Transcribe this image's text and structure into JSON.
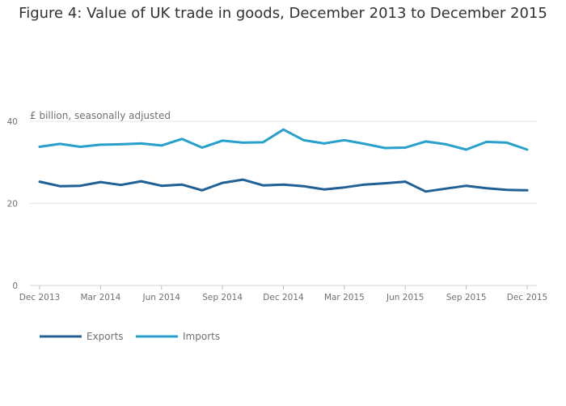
{
  "chart_data": {
    "type": "line",
    "title": "Figure 4: Value of UK trade in goods, December 2013 to December 2015",
    "ylabel": "£ billion, seasonally adjusted",
    "xlabel": "",
    "ylim": [
      0,
      40
    ],
    "y_ticks": [
      0,
      20,
      40
    ],
    "x_tick_labels": [
      "Dec 2013",
      "Mar 2014",
      "Jun 2014",
      "Sep 2014",
      "Dec 2014",
      "Mar 2015",
      "Jun 2015",
      "Sep 2015",
      "Dec 2015"
    ],
    "x_tick_every": 3,
    "grid": true,
    "legend_position": "bottom-left",
    "months": [
      "Dec 2013",
      "Jan 2014",
      "Feb 2014",
      "Mar 2014",
      "Apr 2014",
      "May 2014",
      "Jun 2014",
      "Jul 2014",
      "Aug 2014",
      "Sep 2014",
      "Oct 2014",
      "Nov 2014",
      "Dec 2014",
      "Jan 2015",
      "Feb 2015",
      "Mar 2015",
      "Apr 2015",
      "May 2015",
      "Jun 2015",
      "Jul 2015",
      "Aug 2015",
      "Sep 2015",
      "Oct 2015",
      "Nov 2015",
      "Dec 2015"
    ],
    "series": [
      {
        "name": "Exports",
        "color": "#206095",
        "values": [
          25.3,
          24.2,
          24.3,
          25.2,
          24.5,
          25.4,
          24.3,
          24.6,
          23.2,
          25.0,
          25.8,
          24.4,
          24.6,
          24.2,
          23.4,
          23.9,
          24.6,
          24.9,
          25.3,
          22.9,
          23.6,
          24.3,
          23.7,
          23.3,
          23.2
        ]
      },
      {
        "name": "Imports",
        "color": "#27a0cc",
        "values": [
          33.8,
          34.5,
          33.8,
          34.3,
          34.4,
          34.6,
          34.1,
          35.7,
          33.6,
          35.3,
          34.8,
          34.9,
          38.0,
          35.4,
          34.6,
          35.4,
          34.5,
          33.5,
          33.6,
          35.1,
          34.4,
          33.1,
          35.0,
          34.8,
          33.1
        ]
      }
    ]
  }
}
